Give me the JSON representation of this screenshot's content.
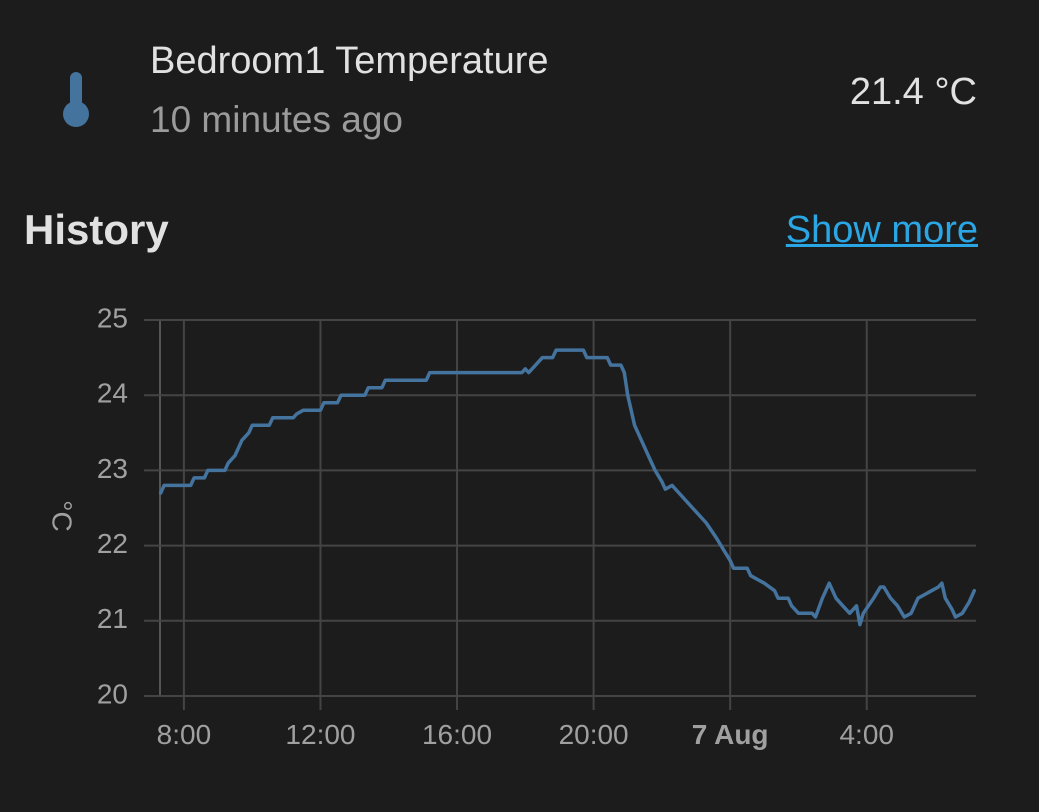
{
  "entity": {
    "name": "Bedroom1 Temperature",
    "last_changed": "10 minutes ago",
    "state": "21.4 °C",
    "icon": "thermometer-icon",
    "icon_color": "#44739e"
  },
  "history": {
    "title": "History",
    "show_more_label": "Show more",
    "link_color": "#2aa6e5"
  },
  "chart_data": {
    "type": "line",
    "title": "",
    "xlabel": "",
    "ylabel": "°C",
    "ylim": [
      20,
      25
    ],
    "xlim_hours": [
      7.3,
      31.2
    ],
    "grid": true,
    "line_color": "#44739e",
    "x_ticks": [
      {
        "hour": 8,
        "label": "8:00",
        "bold": false
      },
      {
        "hour": 12,
        "label": "12:00",
        "bold": false
      },
      {
        "hour": 16,
        "label": "16:00",
        "bold": false
      },
      {
        "hour": 20,
        "label": "20:00",
        "bold": false
      },
      {
        "hour": 24,
        "label": "7 Aug",
        "bold": true
      },
      {
        "hour": 28,
        "label": "4:00",
        "bold": false
      }
    ],
    "y_ticks": [
      20,
      21,
      22,
      23,
      24,
      25
    ],
    "series": [
      {
        "name": "Bedroom1 Temperature",
        "points": [
          [
            7.32,
            22.7
          ],
          [
            7.42,
            22.8
          ],
          [
            7.9,
            22.8
          ],
          [
            8.2,
            22.8
          ],
          [
            8.3,
            22.9
          ],
          [
            8.6,
            22.9
          ],
          [
            8.7,
            23.0
          ],
          [
            9.2,
            23.0
          ],
          [
            9.3,
            23.1
          ],
          [
            9.5,
            23.2
          ],
          [
            9.7,
            23.4
          ],
          [
            9.9,
            23.5
          ],
          [
            10.0,
            23.6
          ],
          [
            10.5,
            23.6
          ],
          [
            10.6,
            23.7
          ],
          [
            11.2,
            23.7
          ],
          [
            11.3,
            23.75
          ],
          [
            11.5,
            23.8
          ],
          [
            12.0,
            23.8
          ],
          [
            12.1,
            23.9
          ],
          [
            12.5,
            23.9
          ],
          [
            12.6,
            24.0
          ],
          [
            13.3,
            24.0
          ],
          [
            13.4,
            24.1
          ],
          [
            13.8,
            24.1
          ],
          [
            13.9,
            24.2
          ],
          [
            15.1,
            24.2
          ],
          [
            15.2,
            24.3
          ],
          [
            17.9,
            24.3
          ],
          [
            18.0,
            24.35
          ],
          [
            18.1,
            24.3
          ],
          [
            18.3,
            24.4
          ],
          [
            18.5,
            24.5
          ],
          [
            18.8,
            24.5
          ],
          [
            18.9,
            24.6
          ],
          [
            19.7,
            24.6
          ],
          [
            19.8,
            24.5
          ],
          [
            20.4,
            24.5
          ],
          [
            20.5,
            24.4
          ],
          [
            20.8,
            24.4
          ],
          [
            20.9,
            24.3
          ],
          [
            21.0,
            24.0
          ],
          [
            21.2,
            23.6
          ],
          [
            21.4,
            23.4
          ],
          [
            21.6,
            23.2
          ],
          [
            21.8,
            23.0
          ],
          [
            22.0,
            22.85
          ],
          [
            22.1,
            22.75
          ],
          [
            22.3,
            22.8
          ],
          [
            22.5,
            22.7
          ],
          [
            22.9,
            22.5
          ],
          [
            23.3,
            22.3
          ],
          [
            23.6,
            22.1
          ],
          [
            23.8,
            21.95
          ],
          [
            24.0,
            21.8
          ],
          [
            24.1,
            21.7
          ],
          [
            24.5,
            21.7
          ],
          [
            24.6,
            21.6
          ],
          [
            25.0,
            21.5
          ],
          [
            25.3,
            21.4
          ],
          [
            25.4,
            21.3
          ],
          [
            25.7,
            21.3
          ],
          [
            25.8,
            21.2
          ],
          [
            26.0,
            21.1
          ],
          [
            26.4,
            21.1
          ],
          [
            26.5,
            21.05
          ],
          [
            26.7,
            21.3
          ],
          [
            26.9,
            21.5
          ],
          [
            27.1,
            21.3
          ],
          [
            27.3,
            21.2
          ],
          [
            27.5,
            21.1
          ],
          [
            27.7,
            21.2
          ],
          [
            27.8,
            20.95
          ],
          [
            27.9,
            21.1
          ],
          [
            28.2,
            21.3
          ],
          [
            28.4,
            21.45
          ],
          [
            28.5,
            21.45
          ],
          [
            28.7,
            21.3
          ],
          [
            28.9,
            21.2
          ],
          [
            29.1,
            21.05
          ],
          [
            29.3,
            21.1
          ],
          [
            29.5,
            21.3
          ],
          [
            29.7,
            21.35
          ],
          [
            29.9,
            21.4
          ],
          [
            30.1,
            21.45
          ],
          [
            30.2,
            21.5
          ],
          [
            30.3,
            21.3
          ],
          [
            30.5,
            21.15
          ],
          [
            30.6,
            21.05
          ],
          [
            30.8,
            21.1
          ],
          [
            31.0,
            21.25
          ],
          [
            31.15,
            21.4
          ]
        ]
      }
    ]
  }
}
